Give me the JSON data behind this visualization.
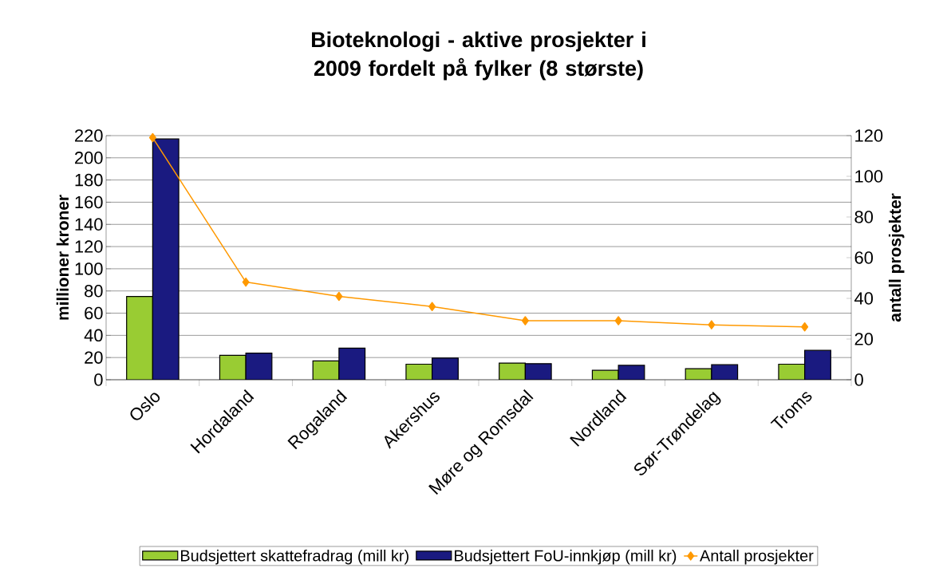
{
  "chart_data": {
    "type": "bar",
    "title": "Bioteknologi - aktive prosjekter i 2009 fordelt på fylker (8 største)",
    "ylabel": "millioner kroner",
    "y2label": "antall prosjekter",
    "categories": [
      "Oslo",
      "Hordaland",
      "Rogaland",
      "Akershus",
      "Møre og Romsdal",
      "Nordland",
      "Sør-Trøndelag",
      "Troms"
    ],
    "series": [
      {
        "name": "Budsjettert skattefradrag (mill kr)",
        "color": "#99cc33",
        "values": [
          75,
          22,
          17,
          14,
          15,
          8.5,
          10,
          14
        ]
      },
      {
        "name": "Budsjettert FoU-innkjøp (mill kr)",
        "color": "#1a1a80",
        "values": [
          217,
          24,
          28.5,
          19.5,
          14.5,
          13,
          13.5,
          26.5
        ]
      },
      {
        "name": "Antall prosjekter",
        "type": "line",
        "axis": "y2",
        "color": "#ff9900",
        "marker": "diamond",
        "values": [
          119,
          48,
          41,
          36,
          29,
          29,
          27,
          26
        ]
      }
    ],
    "ylim": [
      0,
      220
    ],
    "yticks": [
      0,
      20,
      40,
      60,
      80,
      100,
      120,
      140,
      160,
      180,
      200,
      220
    ],
    "y2lim": [
      0,
      120
    ],
    "y2ticks": [
      0,
      20,
      40,
      60,
      80,
      100,
      120
    ],
    "grid": "y",
    "legend": "bottom"
  }
}
